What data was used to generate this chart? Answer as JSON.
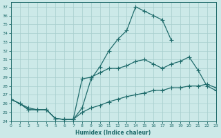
{
  "bg_color": "#cce9e8",
  "grid_color": "#a8cece",
  "line_color": "#1f6b6b",
  "xlabel": "Humidex (Indice chaleur)",
  "xlim": [
    0,
    23
  ],
  "ylim": [
    24,
    37.5
  ],
  "xticks": [
    0,
    1,
    2,
    3,
    4,
    5,
    6,
    7,
    8,
    9,
    10,
    11,
    12,
    13,
    14,
    15,
    16,
    17,
    18,
    19,
    20,
    21,
    22,
    23
  ],
  "yticks": [
    24,
    25,
    26,
    27,
    28,
    29,
    30,
    31,
    32,
    33,
    34,
    35,
    36,
    37
  ],
  "curve1_x": [
    0,
    1,
    2,
    3,
    4,
    5,
    6,
    7,
    8,
    9,
    10,
    11,
    12,
    13,
    14,
    15,
    16,
    17,
    18
  ],
  "curve1_y": [
    26.5,
    26.0,
    25.5,
    25.3,
    25.3,
    24.3,
    24.2,
    24.2,
    25.5,
    28.8,
    30.2,
    32.0,
    33.3,
    34.3,
    37.0,
    36.5,
    36.0,
    35.5,
    33.2
  ],
  "curve2_x": [
    0,
    1,
    2,
    3,
    4,
    5,
    6,
    7,
    8,
    9,
    10,
    11,
    12,
    13,
    14,
    15,
    16,
    17,
    18,
    19,
    20,
    21,
    22,
    23
  ],
  "curve2_y": [
    26.5,
    26.0,
    25.3,
    25.3,
    25.3,
    24.3,
    24.2,
    24.2,
    28.8,
    29.0,
    29.5,
    30.0,
    30.0,
    30.3,
    30.8,
    31.0,
    30.5,
    30.0,
    30.5,
    30.8,
    31.3,
    29.8,
    28.0,
    27.5
  ],
  "curve3_x": [
    0,
    1,
    2,
    3,
    4,
    5,
    6,
    7,
    8,
    9,
    10,
    11,
    12,
    13,
    14,
    15,
    16,
    17,
    18,
    19,
    20,
    21,
    22,
    23
  ],
  "curve3_y": [
    26.5,
    26.0,
    25.3,
    25.3,
    25.3,
    24.3,
    24.2,
    24.2,
    25.0,
    25.5,
    25.8,
    26.2,
    26.5,
    26.8,
    27.0,
    27.2,
    27.5,
    27.5,
    27.8,
    27.8,
    28.0,
    28.0,
    28.2,
    27.8
  ],
  "markersize": 2.5,
  "linewidth": 0.9
}
